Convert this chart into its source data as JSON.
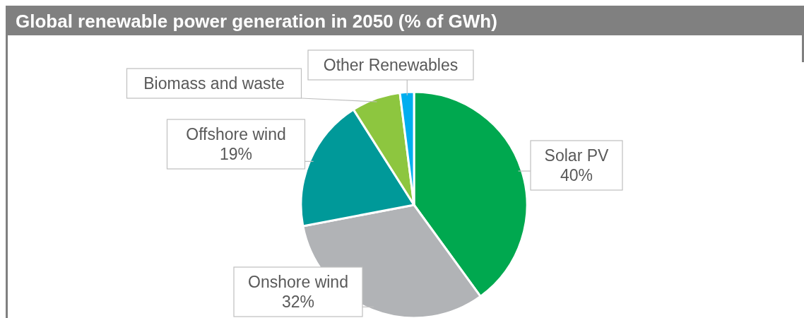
{
  "chart_data": {
    "type": "pie",
    "title": "Global renewable power generation in 2050 (% of GWh)",
    "categories": [
      "Solar PV",
      "Onshore wind",
      "Offshore wind",
      "Biomass and waste",
      "Other Renewables"
    ],
    "values": [
      40,
      32,
      19,
      7,
      2
    ],
    "colors": [
      "#00a84f",
      "#b1b3b6",
      "#009999",
      "#8dc63f",
      "#00aeef"
    ],
    "value_labels": [
      "40%",
      "32%",
      "19%",
      null,
      null
    ]
  }
}
